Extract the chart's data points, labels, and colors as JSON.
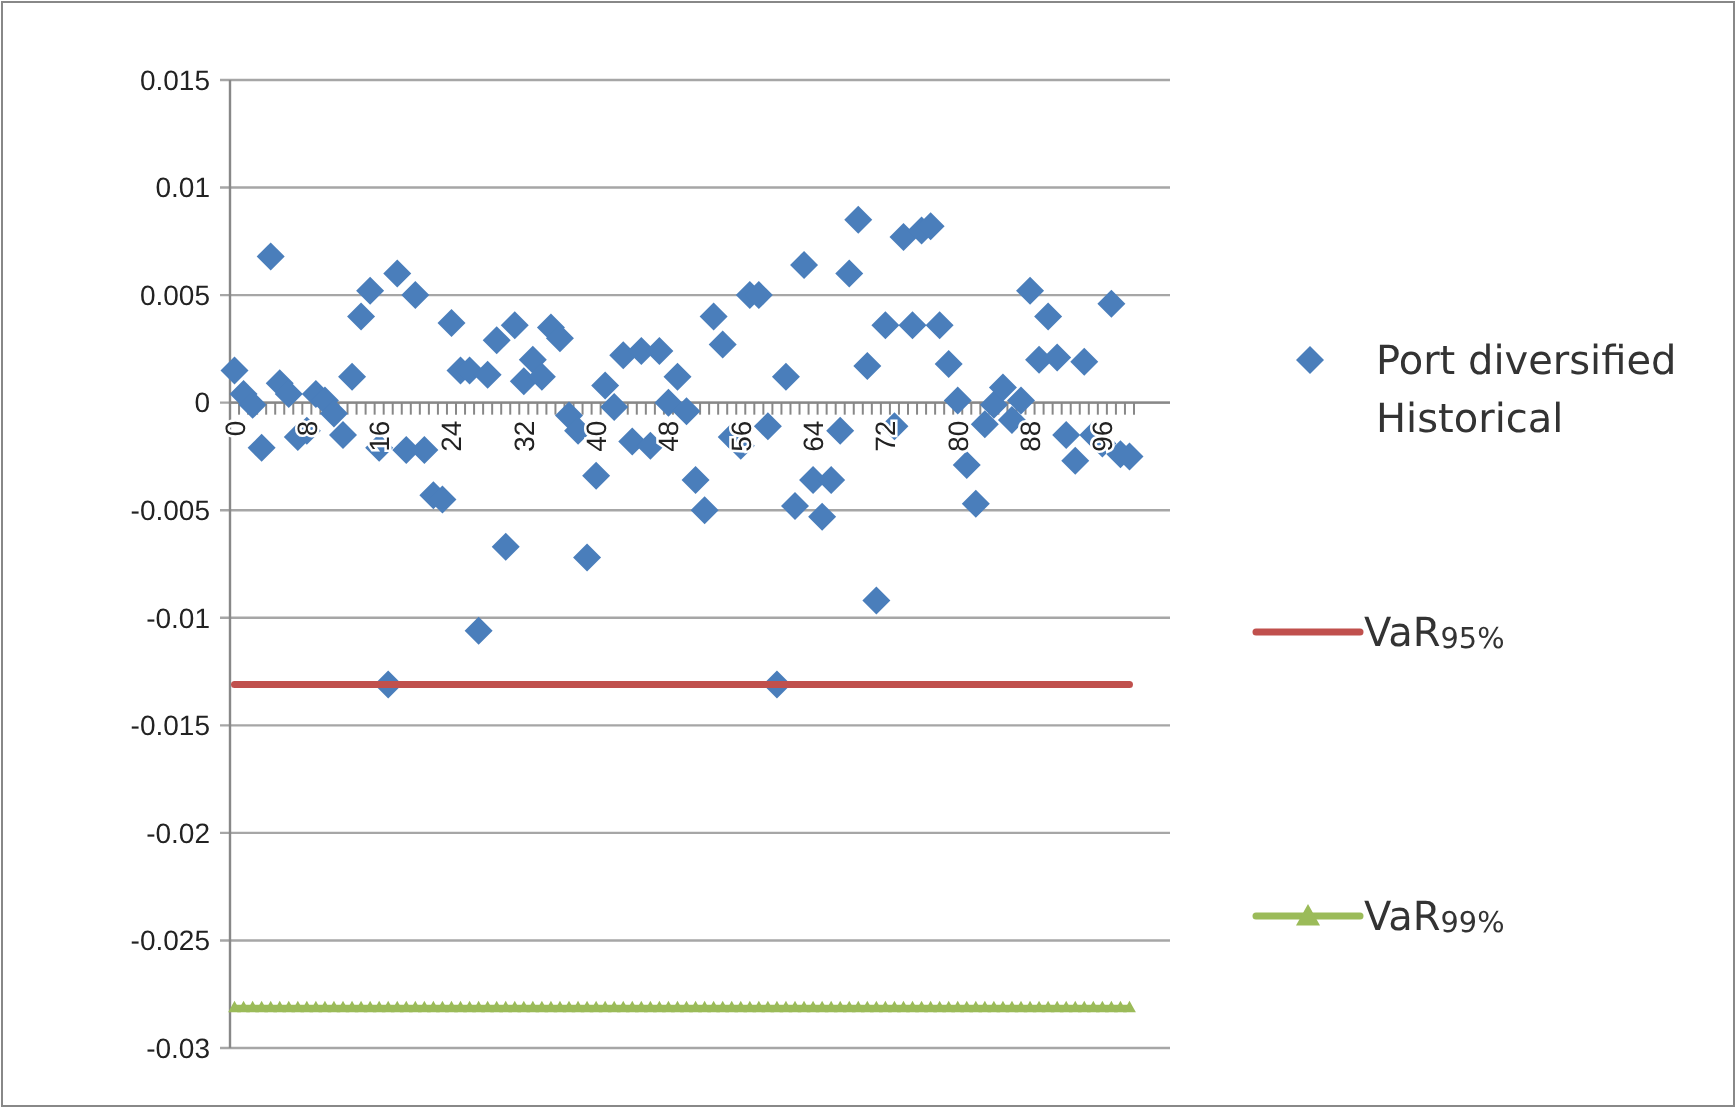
{
  "chart_data": {
    "type": "scatter",
    "marker": "diamond",
    "categories": [
      "0",
      null,
      null,
      null,
      null,
      null,
      null,
      null,
      "8",
      null,
      null,
      null,
      null,
      null,
      null,
      null,
      "16",
      null,
      null,
      null,
      null,
      null,
      null,
      null,
      "24",
      null,
      null,
      null,
      null,
      null,
      null,
      null,
      "32",
      null,
      null,
      null,
      null,
      null,
      null,
      null,
      "40",
      null,
      null,
      null,
      null,
      null,
      null,
      null,
      "48",
      null,
      null,
      null,
      null,
      null,
      null,
      null,
      "56",
      null,
      null,
      null,
      null,
      null,
      null,
      null,
      "64",
      null,
      null,
      null,
      null,
      null,
      null,
      null,
      "72",
      null,
      null,
      null,
      null,
      null,
      null,
      null,
      "80",
      null,
      null,
      null,
      null,
      null,
      null,
      null,
      "88",
      null,
      null,
      null,
      null,
      null,
      null,
      null,
      "96",
      null,
      null,
      null
    ],
    "series": [
      {
        "name": "Port diversified Historical",
        "color": "#4a7ebb",
        "values": [
          0.0015,
          0.0004,
          -0.0001,
          -0.0021,
          0.0068,
          0.0009,
          0.0004,
          -0.0016,
          -0.0013,
          0.0004,
          0.0001,
          -0.0005,
          -0.0015,
          0.0012,
          0.004,
          0.0052,
          -0.0021,
          -0.0131,
          0.006,
          -0.0022,
          0.005,
          -0.0022,
          -0.0043,
          -0.0045,
          0.0037,
          0.0015,
          0.0015,
          -0.0106,
          0.0013,
          0.0029,
          -0.0067,
          0.0036,
          0.001,
          0.002,
          0.0012,
          0.0035,
          0.003,
          -0.0006,
          -0.0013,
          -0.0072,
          -0.0034,
          0.0008,
          -0.0002,
          0.0022,
          -0.0018,
          0.0024,
          -0.002,
          0.0024,
          0,
          0.0012,
          -0.0004,
          -0.0036,
          -0.005,
          0.004,
          0.0027,
          -0.0016,
          -0.002,
          0.005,
          0.005,
          -0.0011,
          -0.0131,
          0.0012,
          -0.0048,
          0.0064,
          -0.0036,
          -0.0053,
          -0.0036,
          -0.0013,
          0.006,
          0.0085,
          0.0017,
          -0.0092,
          0.0036,
          -0.0011,
          0.0077,
          0.0036,
          0.008,
          0.0082,
          0.0036,
          0.0018,
          0.0001,
          -0.0029,
          -0.0047,
          -0.001,
          -0.0001,
          0.0007,
          -0.0008,
          0.0001,
          0.0052,
          0.002,
          0.004,
          0.0021,
          -0.0015,
          -0.0027,
          0.0019,
          -0.0015,
          -0.0019,
          0.0046,
          -0.0024,
          -0.0025
        ]
      },
      {
        "name": "VaR$_{95%}$",
        "type": "line",
        "marker": "none",
        "color": "#c0504d",
        "values": [
          -0.0131,
          -0.0131,
          -0.0131,
          -0.0131,
          -0.0131,
          -0.0131,
          -0.0131,
          -0.0131,
          -0.0131,
          -0.0131,
          -0.0131,
          -0.0131,
          -0.0131,
          -0.0131,
          -0.0131,
          -0.0131,
          -0.0131,
          -0.0131,
          -0.0131,
          -0.0131,
          -0.0131,
          -0.0131,
          -0.0131,
          -0.0131,
          -0.0131,
          -0.0131,
          -0.0131,
          -0.0131,
          -0.0131,
          -0.0131,
          -0.0131,
          -0.0131,
          -0.0131,
          -0.0131,
          -0.0131,
          -0.0131,
          -0.0131,
          -0.0131,
          -0.0131,
          -0.0131,
          -0.0131,
          -0.0131,
          -0.0131,
          -0.0131,
          -0.0131,
          -0.0131,
          -0.0131,
          -0.0131,
          -0.0131,
          -0.0131,
          -0.0131,
          -0.0131,
          -0.0131,
          -0.0131,
          -0.0131,
          -0.0131,
          -0.0131,
          -0.0131,
          -0.0131,
          -0.0131,
          -0.0131,
          -0.0131,
          -0.0131,
          -0.0131,
          -0.0131,
          -0.0131,
          -0.0131,
          -0.0131,
          -0.0131,
          -0.0131,
          -0.0131,
          -0.0131,
          -0.0131,
          -0.0131,
          -0.0131,
          -0.0131,
          -0.0131,
          -0.0131,
          -0.0131,
          -0.0131,
          -0.0131,
          -0.0131,
          -0.0131,
          -0.0131,
          -0.0131,
          -0.0131,
          -0.0131,
          -0.0131,
          -0.0131,
          -0.0131,
          -0.0131,
          -0.0131,
          -0.0131,
          -0.0131,
          -0.0131,
          -0.0131,
          -0.0131,
          -0.0131,
          -0.0131,
          -0.0131
        ]
      },
      {
        "name": "VaR$_{99%}$",
        "type": "line",
        "marker": "triangle",
        "color": "#9bbb59",
        "values": [
          -0.0281,
          -0.0281,
          -0.0281,
          -0.0281,
          -0.0281,
          -0.0281,
          -0.0281,
          -0.0281,
          -0.0281,
          -0.0281,
          -0.0281,
          -0.0281,
          -0.0281,
          -0.0281,
          -0.0281,
          -0.0281,
          -0.0281,
          -0.0281,
          -0.0281,
          -0.0281,
          -0.0281,
          -0.0281,
          -0.0281,
          -0.0281,
          -0.0281,
          -0.0281,
          -0.0281,
          -0.0281,
          -0.0281,
          -0.0281,
          -0.0281,
          -0.0281,
          -0.0281,
          -0.0281,
          -0.0281,
          -0.0281,
          -0.0281,
          -0.0281,
          -0.0281,
          -0.0281,
          -0.0281,
          -0.0281,
          -0.0281,
          -0.0281,
          -0.0281,
          -0.0281,
          -0.0281,
          -0.0281,
          -0.0281,
          -0.0281,
          -0.0281,
          -0.0281,
          -0.0281,
          -0.0281,
          -0.0281,
          -0.0281,
          -0.0281,
          -0.0281,
          -0.0281,
          -0.0281,
          -0.0281,
          -0.0281,
          -0.0281,
          -0.0281,
          -0.0281,
          -0.0281,
          -0.0281,
          -0.0281,
          -0.0281,
          -0.0281,
          -0.0281,
          -0.0281,
          -0.0281,
          -0.0281,
          -0.0281,
          -0.0281,
          -0.0281,
          -0.0281,
          -0.0281,
          -0.0281,
          -0.0281,
          -0.0281,
          -0.0281,
          -0.0281,
          -0.0281,
          -0.0281,
          -0.0281,
          -0.0281,
          -0.0281,
          -0.0281,
          -0.0281,
          -0.0281,
          -0.0281,
          -0.0281,
          -0.0281,
          -0.0281,
          -0.0281,
          -0.0281,
          -0.0281,
          -0.0281
        ]
      }
    ],
    "ylim": [
      -0.03,
      0.015
    ],
    "yticks": [
      -0.03,
      -0.025,
      -0.02,
      -0.015,
      -0.01,
      -0.005,
      0,
      0.005,
      0.01,
      0.015
    ],
    "grid": "y",
    "legend": "right"
  }
}
